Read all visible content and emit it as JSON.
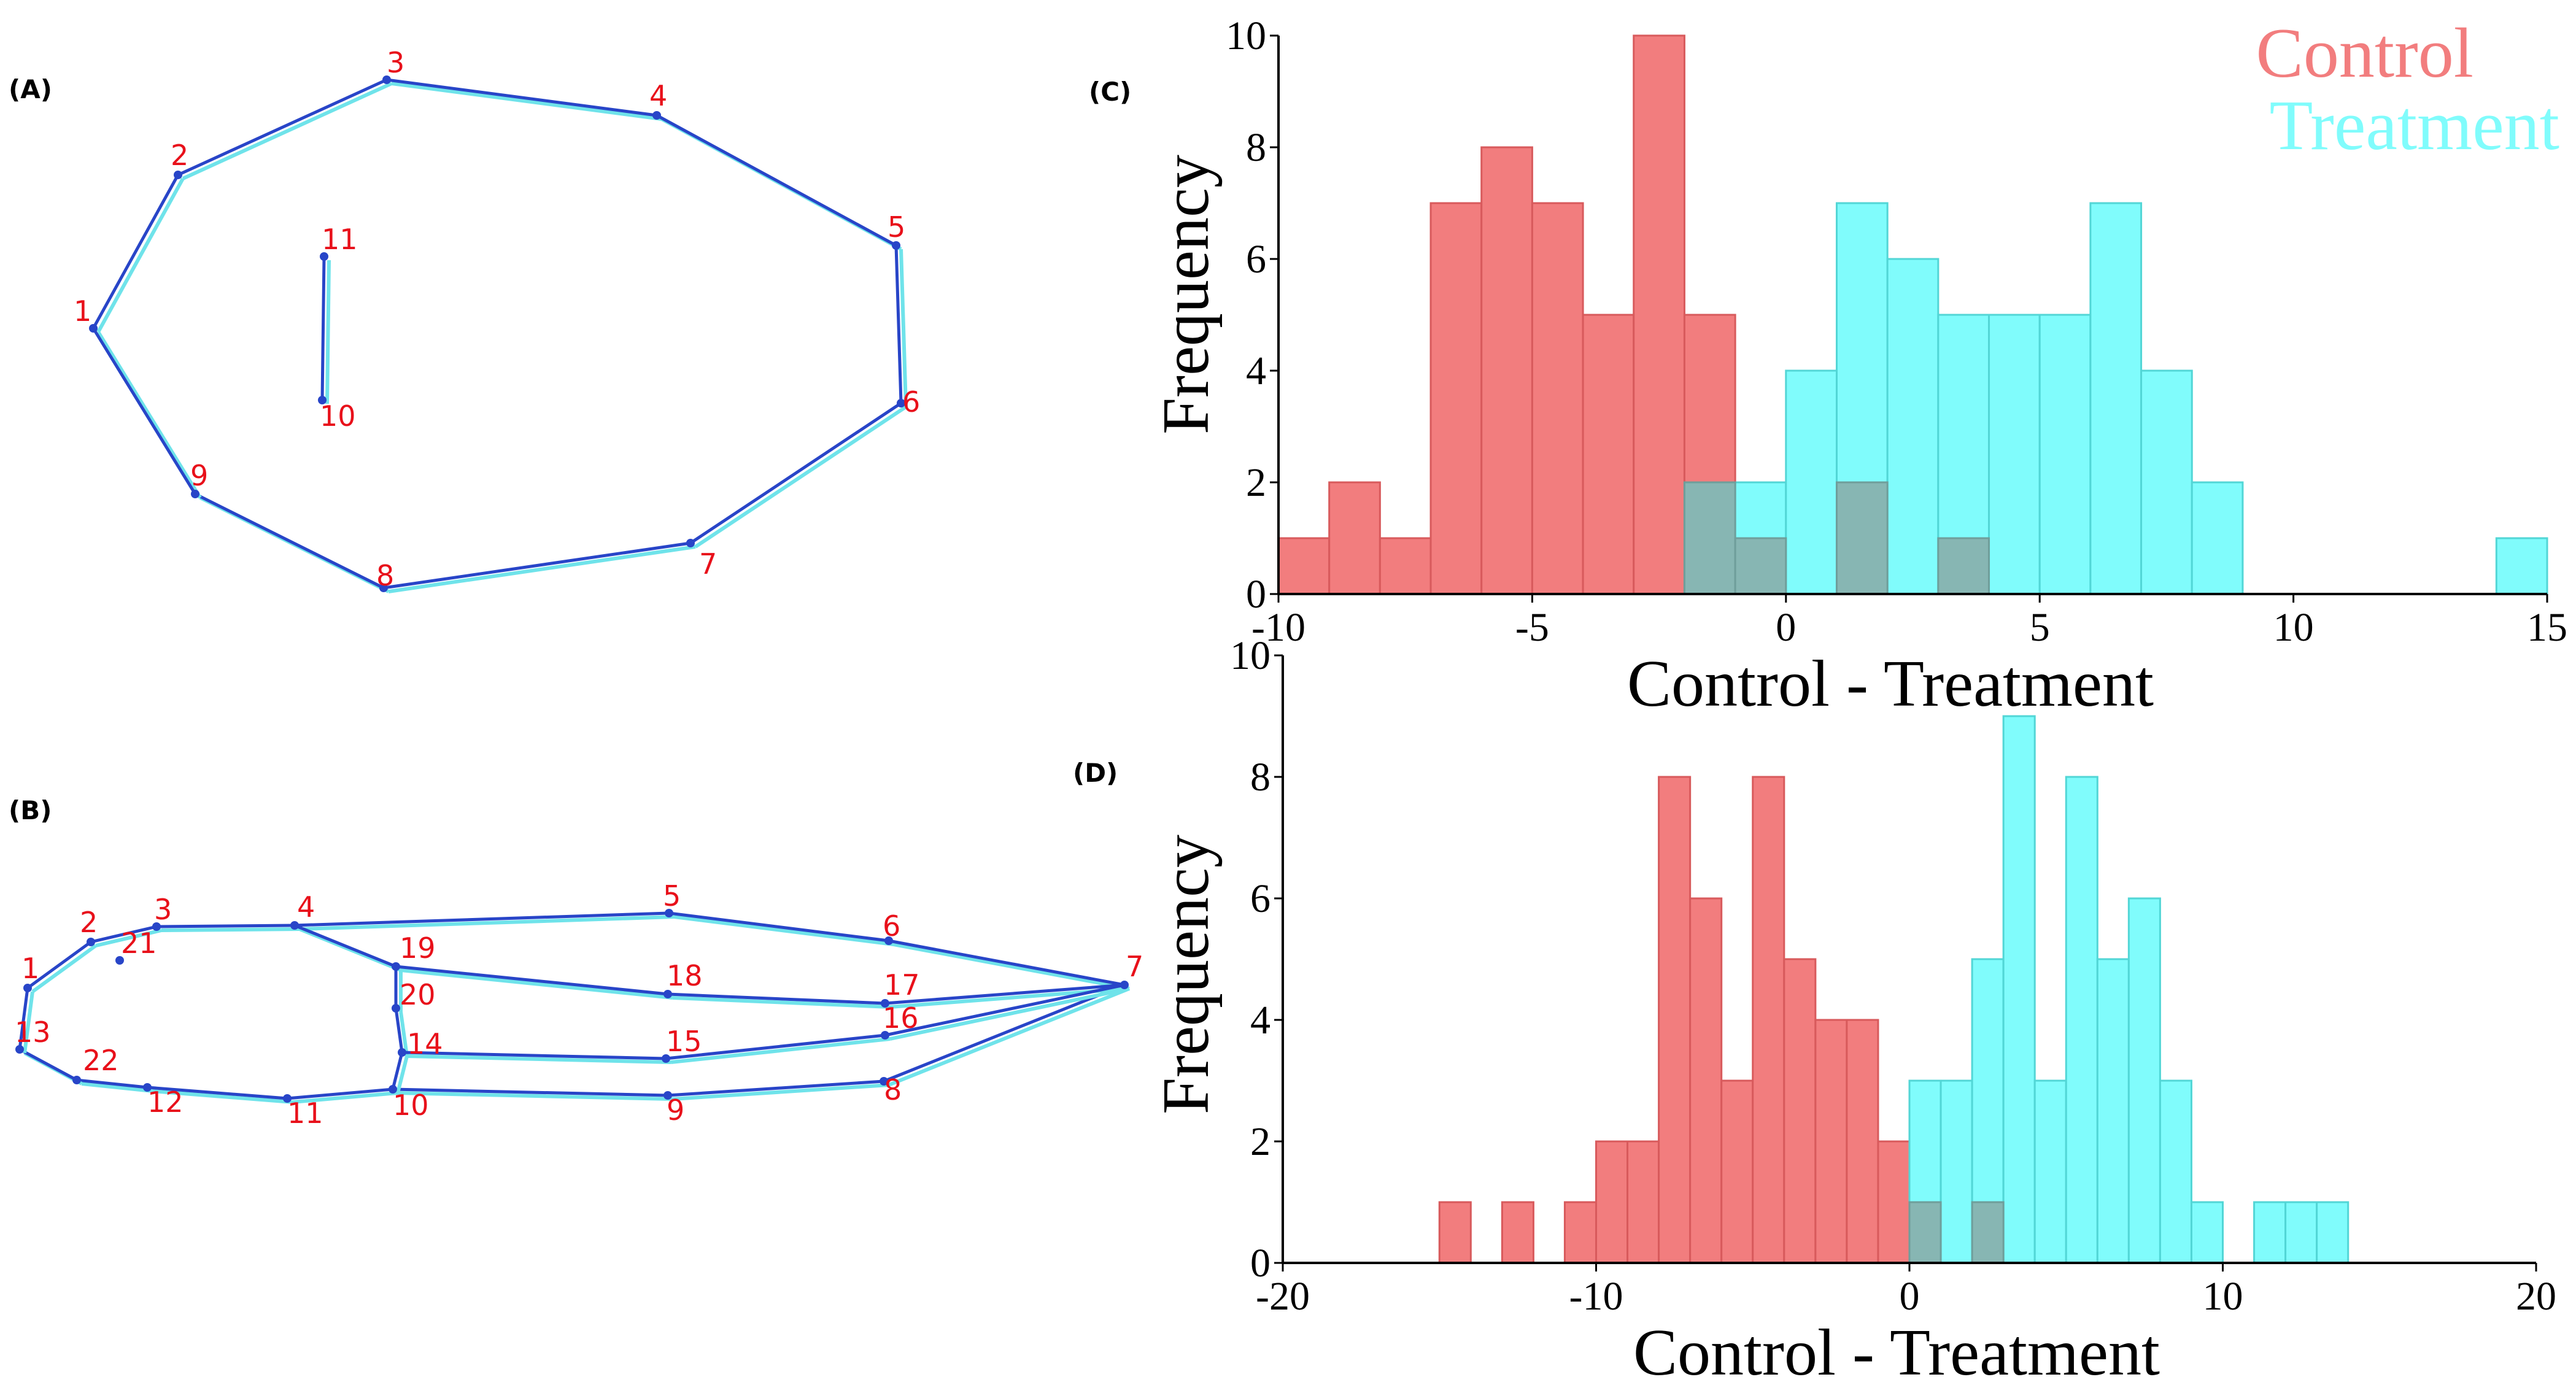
{
  "panels": {
    "A": "(A)",
    "B": "(B)",
    "C": "(C)",
    "D": "(D)"
  },
  "colors": {
    "control": "#f27d7e",
    "control_edge": "#d85a5c",
    "treatment": "#80fcfc",
    "treatment_edge": "#52d6d6",
    "overlap": "#87b6b3",
    "landmark_line": "#2845c8",
    "landmark_shadow": "#6fe3ea",
    "landmark_label": "#e8101a"
  },
  "landmarks_a": {
    "labels": [
      "1",
      "2",
      "3",
      "4",
      "5",
      "6",
      "7",
      "8",
      "9",
      "10",
      "11"
    ]
  },
  "landmarks_b": {
    "labels": [
      "1",
      "2",
      "3",
      "4",
      "5",
      "6",
      "7",
      "8",
      "9",
      "10",
      "11",
      "12",
      "13",
      "14",
      "15",
      "16",
      "17",
      "18",
      "19",
      "20",
      "21",
      "22"
    ]
  },
  "chart_data": [
    {
      "id": "C",
      "type": "bar",
      "title": "",
      "xlabel": "Control - Treatment",
      "ylabel": "Frequency",
      "xlim": [
        -10,
        15
      ],
      "ylim": [
        0,
        10
      ],
      "bin_width": 1,
      "x_ticks": [
        -10,
        -5,
        0,
        5,
        10,
        15
      ],
      "y_ticks": [
        0,
        2,
        4,
        6,
        8,
        10
      ],
      "legend": [
        "Control",
        "Treatment"
      ],
      "legend_position": "top-right",
      "series": [
        {
          "name": "Control",
          "bins": [
            {
              "x0": -10,
              "count": 1
            },
            {
              "x0": -9,
              "count": 2
            },
            {
              "x0": -8,
              "count": 1
            },
            {
              "x0": -7,
              "count": 7
            },
            {
              "x0": -6,
              "count": 8
            },
            {
              "x0": -5,
              "count": 7
            },
            {
              "x0": -4,
              "count": 5
            },
            {
              "x0": -3,
              "count": 10
            },
            {
              "x0": -2,
              "count": 5
            },
            {
              "x0": -1,
              "count": 1
            },
            {
              "x0": 1,
              "count": 2
            },
            {
              "x0": 3,
              "count": 1
            }
          ]
        },
        {
          "name": "Treatment",
          "bins": [
            {
              "x0": -2,
              "count": 2
            },
            {
              "x0": -1,
              "count": 2
            },
            {
              "x0": 0,
              "count": 4
            },
            {
              "x0": 1,
              "count": 7
            },
            {
              "x0": 2,
              "count": 6
            },
            {
              "x0": 3,
              "count": 5
            },
            {
              "x0": 4,
              "count": 5
            },
            {
              "x0": 5,
              "count": 5
            },
            {
              "x0": 6,
              "count": 7
            },
            {
              "x0": 7,
              "count": 4
            },
            {
              "x0": 8,
              "count": 2
            },
            {
              "x0": 14,
              "count": 1
            }
          ]
        }
      ]
    },
    {
      "id": "D",
      "type": "bar",
      "title": "",
      "xlabel": "Control - Treatment",
      "ylabel": "Frequency",
      "xlim": [
        -20,
        20
      ],
      "ylim": [
        0,
        10
      ],
      "bin_width": 1,
      "x_ticks": [
        -20,
        -10,
        0,
        10,
        20
      ],
      "y_ticks": [
        0,
        2,
        4,
        6,
        8,
        10
      ],
      "series": [
        {
          "name": "Control",
          "bins": [
            {
              "x0": -15,
              "count": 1
            },
            {
              "x0": -13,
              "count": 1
            },
            {
              "x0": -11,
              "count": 1
            },
            {
              "x0": -10,
              "count": 2
            },
            {
              "x0": -9,
              "count": 2
            },
            {
              "x0": -8,
              "count": 8
            },
            {
              "x0": -7,
              "count": 6
            },
            {
              "x0": -6,
              "count": 3
            },
            {
              "x0": -5,
              "count": 8
            },
            {
              "x0": -4,
              "count": 5
            },
            {
              "x0": -3,
              "count": 4
            },
            {
              "x0": -2,
              "count": 4
            },
            {
              "x0": -1,
              "count": 2
            },
            {
              "x0": 0,
              "count": 1
            },
            {
              "x0": 2,
              "count": 1
            }
          ]
        },
        {
          "name": "Treatment",
          "bins": [
            {
              "x0": 0,
              "count": 3
            },
            {
              "x0": 1,
              "count": 3
            },
            {
              "x0": 2,
              "count": 5
            },
            {
              "x0": 3,
              "count": 9
            },
            {
              "x0": 4,
              "count": 3
            },
            {
              "x0": 5,
              "count": 8
            },
            {
              "x0": 6,
              "count": 5
            },
            {
              "x0": 7,
              "count": 6
            },
            {
              "x0": 8,
              "count": 3
            },
            {
              "x0": 9,
              "count": 1
            },
            {
              "x0": 11,
              "count": 1
            },
            {
              "x0": 12,
              "count": 1
            },
            {
              "x0": 13,
              "count": 1
            }
          ]
        }
      ]
    }
  ]
}
